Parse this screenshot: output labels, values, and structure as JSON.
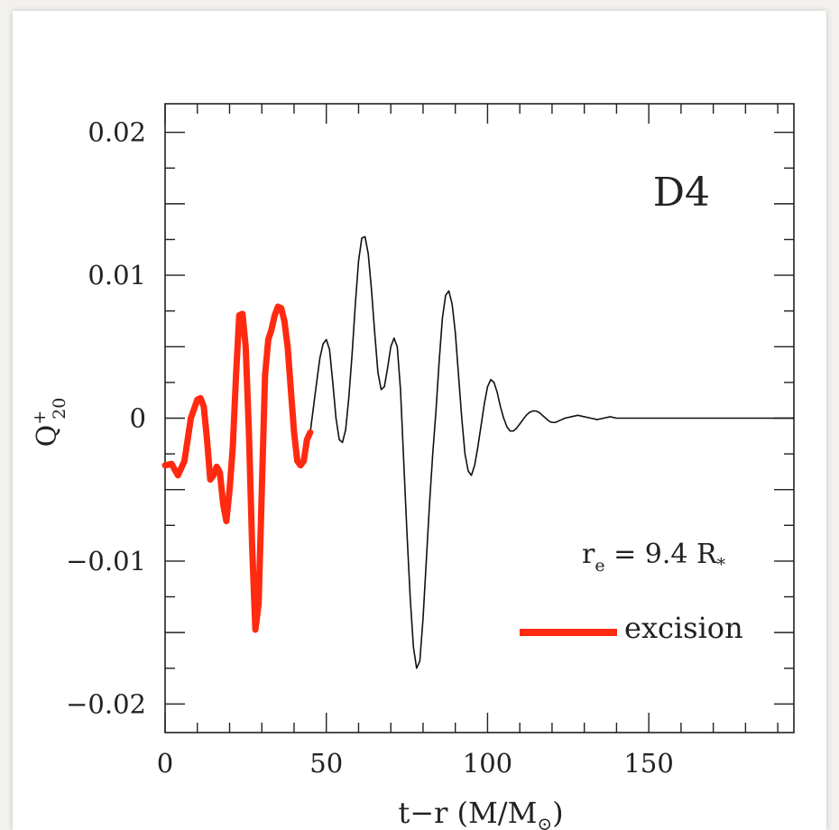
{
  "chart_data": {
    "type": "line",
    "title": "",
    "xlabel": "t−r (M/M",
    "xlabel_sub": "⊙",
    "xlabel_close": ")",
    "ylabel": "Q",
    "ylabel_sup": "+",
    "ylabel_sub": "20",
    "xlim": [
      0,
      195
    ],
    "ylim": [
      -0.022,
      0.022
    ],
    "x_ticks": [
      0,
      50,
      100,
      150
    ],
    "x_tick_labels": [
      "0",
      "50",
      "100",
      "150"
    ],
    "y_ticks": [
      0.02,
      0.01,
      0,
      -0.01,
      -0.02
    ],
    "y_tick_labels": [
      "0.02",
      "0.01",
      "0",
      "−0.01",
      "−0.02"
    ],
    "grid": false,
    "label": "D4",
    "radius_note": {
      "prefix": "r",
      "sub": "e",
      "body": " = 9.4 R",
      "star": "*"
    },
    "legend": {
      "position": "bottom-right",
      "entries": [
        {
          "name": "excision",
          "color": "#ff2a10"
        }
      ]
    },
    "series": [
      {
        "name": "excision",
        "color": "#ff2a10",
        "x": [
          0,
          2,
          4,
          6,
          8,
          10,
          11,
          12,
          13,
          14,
          15,
          16,
          17,
          18,
          19,
          20,
          21,
          22,
          23,
          24,
          25,
          26,
          27,
          28,
          29,
          30,
          31,
          32,
          33,
          34,
          35,
          36,
          37,
          38,
          39,
          40,
          41,
          42,
          43,
          44,
          45
        ],
        "y": [
          -0.0033,
          -0.0032,
          -0.004,
          -0.003,
          0.0,
          0.0013,
          0.0014,
          0.0008,
          -0.0015,
          -0.0043,
          -0.004,
          -0.0034,
          -0.0038,
          -0.006,
          -0.0072,
          -0.005,
          -0.002,
          0.003,
          0.0072,
          0.0073,
          0.005,
          -0.001,
          -0.009,
          -0.0148,
          -0.013,
          -0.005,
          0.003,
          0.0055,
          0.0062,
          0.0072,
          0.0078,
          0.0077,
          0.0068,
          0.005,
          0.002,
          -0.001,
          -0.003,
          -0.0033,
          -0.003,
          -0.0015,
          -0.001
        ]
      },
      {
        "name": "",
        "color": "#111111",
        "x": [
          45,
          47,
          48,
          49,
          50,
          51,
          52,
          53,
          54,
          55,
          56,
          57,
          58,
          59,
          60,
          61,
          62,
          63,
          64,
          65,
          66,
          67,
          68,
          69,
          70,
          71,
          72,
          73,
          74,
          75,
          76,
          77,
          78,
          79,
          80,
          81,
          82,
          83,
          84,
          85,
          86,
          87,
          88,
          89,
          90,
          91,
          92,
          93,
          94,
          95,
          96,
          97,
          98,
          99,
          100,
          101,
          102,
          103,
          104,
          105,
          106,
          107,
          108,
          109,
          110,
          111,
          112,
          113,
          114,
          115,
          116,
          117,
          118,
          119,
          120,
          121,
          122,
          124,
          126,
          128,
          130,
          132,
          134,
          136,
          138,
          140,
          142,
          144,
          146,
          148,
          150,
          152,
          154,
          156,
          158,
          160,
          165,
          170,
          175,
          180,
          185,
          190,
          195
        ],
        "y": [
          -0.001,
          0.0025,
          0.0042,
          0.0052,
          0.0055,
          0.0048,
          0.0025,
          0.0,
          -0.0015,
          -0.0017,
          -0.0008,
          0.0015,
          0.0045,
          0.008,
          0.011,
          0.0126,
          0.0127,
          0.0115,
          0.009,
          0.006,
          0.0032,
          0.002,
          0.0022,
          0.0035,
          0.005,
          0.0056,
          0.005,
          0.002,
          -0.003,
          -0.008,
          -0.0125,
          -0.016,
          -0.0175,
          -0.017,
          -0.014,
          -0.01,
          -0.006,
          -0.0025,
          0.0005,
          0.004,
          0.007,
          0.0086,
          0.0089,
          0.008,
          0.006,
          0.003,
          0.0,
          -0.0025,
          -0.0037,
          -0.004,
          -0.0033,
          -0.002,
          -0.0005,
          0.001,
          0.0022,
          0.0027,
          0.0025,
          0.0018,
          0.0008,
          0.0,
          -0.0006,
          -0.0009,
          -0.0009,
          -0.0007,
          -0.0004,
          -0.0001,
          0.0002,
          0.0004,
          0.0005,
          0.0005,
          0.0004,
          0.0002,
          0.0,
          -0.0002,
          -0.0003,
          -0.0003,
          -0.0002,
          0.0,
          0.0001,
          0.0002,
          0.0001,
          0.0,
          -0.0001,
          0.0,
          0.0001,
          0.0,
          0.0,
          0.0,
          0.0,
          0.0,
          0.0,
          0.0,
          0.0,
          0.0,
          0.0,
          0.0,
          0.0,
          0.0,
          0.0,
          0.0,
          0.0,
          0.0,
          0.0
        ]
      }
    ]
  }
}
